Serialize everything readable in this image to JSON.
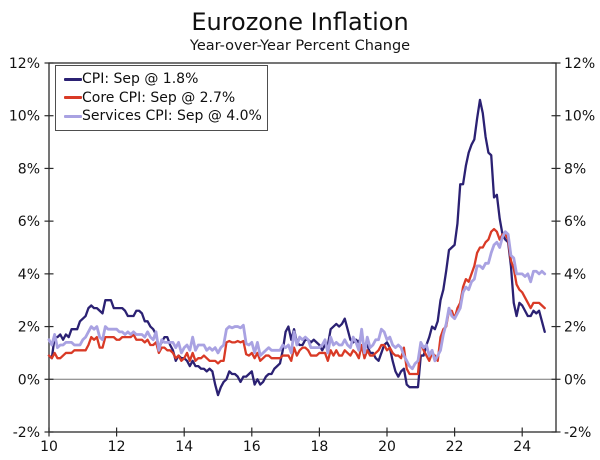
{
  "chart": {
    "title": "Eurozone Inflation",
    "subtitle": "Year-over-Year Percent Change",
    "legend": [
      {
        "label": "CPI: Sep @ 1.8%",
        "color": "#2b2173"
      },
      {
        "label": "Core CPI: Sep @ 2.7%",
        "color": "#d93a26"
      },
      {
        "label": "Services CPI: Sep @ 4.0%",
        "color": "#a9a2e2"
      }
    ]
  },
  "chart_data": {
    "type": "line",
    "title": "Eurozone Inflation",
    "subtitle": "Year-over-Year Percent Change",
    "x_unit": "year, monthly points starting Jan 2010, ending Sep 2024",
    "xlim": [
      2010,
      2025
    ],
    "ylim": [
      -2,
      12
    ],
    "grid": false,
    "zero_line": true,
    "legend_position": "top-left",
    "frame_color": "#2b2b2b",
    "zero_line_color": "#757575",
    "x_tick_years": [
      2010,
      2012,
      2014,
      2016,
      2018,
      2020,
      2022,
      2024
    ],
    "x_tick_labels": [
      "10",
      "12",
      "14",
      "16",
      "18",
      "20",
      "22",
      "24"
    ],
    "y_tick_values": [
      -2,
      0,
      2,
      4,
      6,
      8,
      10,
      12
    ],
    "y_tick_labels": [
      "-2%",
      "0%",
      "2%",
      "4%",
      "6%",
      "8%",
      "10%",
      "12%"
    ],
    "start_year": 2010,
    "series": [
      {
        "name": "CPI: Sep @ 1.8%",
        "color": "#2b2173",
        "stroke_width": 2.3,
        "last_point": {
          "month": "Sep 2024",
          "value": 1.8
        },
        "values": [
          0.9,
          0.8,
          1.6,
          1.6,
          1.7,
          1.5,
          1.7,
          1.6,
          1.9,
          1.9,
          1.9,
          2.2,
          2.3,
          2.4,
          2.7,
          2.8,
          2.7,
          2.7,
          2.6,
          2.5,
          3.0,
          3.0,
          3.0,
          2.7,
          2.7,
          2.7,
          2.7,
          2.6,
          2.4,
          2.4,
          2.4,
          2.6,
          2.6,
          2.5,
          2.2,
          2.2,
          2.0,
          1.9,
          1.7,
          1.2,
          1.4,
          1.6,
          1.6,
          1.3,
          1.1,
          0.7,
          0.9,
          0.8,
          0.8,
          0.7,
          0.5,
          0.7,
          0.5,
          0.5,
          0.4,
          0.4,
          0.3,
          0.4,
          0.3,
          -0.2,
          -0.6,
          -0.3,
          -0.1,
          0.0,
          0.3,
          0.2,
          0.2,
          0.1,
          -0.1,
          0.1,
          0.1,
          0.2,
          0.3,
          -0.2,
          0.0,
          -0.2,
          -0.1,
          0.1,
          0.2,
          0.2,
          0.4,
          0.5,
          0.6,
          1.1,
          1.8,
          2.0,
          1.5,
          1.9,
          1.4,
          1.3,
          1.3,
          1.5,
          1.5,
          1.4,
          1.5,
          1.4,
          1.3,
          1.1,
          1.3,
          1.3,
          1.9,
          2.0,
          2.1,
          2.0,
          2.1,
          2.3,
          1.9,
          1.5,
          1.4,
          1.5,
          1.4,
          1.7,
          1.2,
          1.3,
          1.0,
          1.0,
          0.8,
          0.7,
          1.0,
          1.3,
          1.4,
          1.2,
          0.7,
          0.3,
          0.1,
          0.3,
          0.4,
          -0.2,
          -0.3,
          -0.3,
          -0.3,
          -0.3,
          0.9,
          0.9,
          1.3,
          1.6,
          2.0,
          1.9,
          2.2,
          3.0,
          3.4,
          4.1,
          4.9,
          5.0,
          5.1,
          5.9,
          7.4,
          7.4,
          8.1,
          8.6,
          8.9,
          9.1,
          9.9,
          10.6,
          10.1,
          9.2,
          8.6,
          8.5,
          6.9,
          7.0,
          6.1,
          5.5,
          5.3,
          5.2,
          4.3,
          2.9,
          2.4,
          2.9,
          2.8,
          2.6,
          2.4,
          2.4,
          2.6,
          2.5,
          2.6,
          2.2,
          1.8
        ]
      },
      {
        "name": "Core CPI: Sep @ 2.7%",
        "color": "#d93a26",
        "stroke_width": 2.3,
        "last_point": {
          "month": "Sep 2024",
          "value": 2.7
        },
        "values": [
          0.9,
          0.8,
          1.0,
          0.8,
          0.8,
          0.9,
          1.0,
          1.0,
          1.0,
          1.1,
          1.1,
          1.1,
          1.1,
          1.1,
          1.3,
          1.6,
          1.5,
          1.6,
          1.2,
          1.2,
          1.6,
          1.6,
          1.6,
          1.6,
          1.5,
          1.5,
          1.6,
          1.6,
          1.6,
          1.6,
          1.7,
          1.5,
          1.5,
          1.5,
          1.4,
          1.5,
          1.3,
          1.3,
          1.4,
          1.0,
          1.2,
          1.2,
          1.1,
          1.1,
          1.0,
          0.8,
          0.9,
          0.7,
          0.8,
          1.0,
          0.7,
          1.0,
          0.7,
          0.8,
          0.8,
          0.9,
          0.8,
          0.7,
          0.7,
          0.7,
          0.6,
          0.7,
          0.7,
          1.4,
          1.45,
          1.4,
          1.4,
          1.45,
          1.4,
          1.45,
          0.95,
          0.9,
          1.0,
          0.8,
          1.0,
          0.7,
          0.8,
          0.9,
          0.9,
          0.8,
          0.8,
          0.8,
          0.8,
          0.9,
          0.9,
          0.9,
          0.7,
          1.2,
          0.9,
          1.1,
          1.2,
          1.2,
          1.1,
          0.9,
          0.9,
          0.9,
          1.0,
          1.0,
          1.0,
          0.7,
          1.1,
          0.9,
          1.1,
          0.9,
          0.9,
          1.1,
          1.0,
          0.9,
          1.1,
          1.0,
          0.8,
          1.3,
          0.8,
          1.1,
          0.9,
          0.9,
          1.0,
          1.1,
          1.3,
          1.3,
          1.1,
          1.2,
          1.0,
          0.9,
          0.9,
          0.8,
          1.2,
          0.4,
          0.2,
          0.2,
          0.2,
          0.2,
          1.4,
          1.1,
          0.9,
          0.7,
          1.0,
          0.9,
          0.7,
          1.6,
          1.9,
          2.0,
          2.6,
          2.6,
          2.3,
          2.7,
          2.9,
          3.5,
          3.8,
          3.7,
          4.0,
          4.3,
          4.8,
          5.0,
          5.0,
          5.2,
          5.3,
          5.6,
          5.7,
          5.6,
          5.3,
          5.5,
          5.5,
          5.3,
          4.5,
          4.2,
          3.6,
          3.4,
          3.3,
          3.1,
          2.9,
          2.7,
          2.9,
          2.9,
          2.9,
          2.8,
          2.7
        ]
      },
      {
        "name": "Services CPI: Sep @ 4.0%",
        "color": "#a9a2e2",
        "stroke_width": 2.8,
        "last_point": {
          "month": "Sep 2024",
          "value": 4.0
        },
        "values": [
          1.5,
          1.3,
          1.7,
          1.2,
          1.3,
          1.3,
          1.4,
          1.4,
          1.4,
          1.3,
          1.3,
          1.3,
          1.5,
          1.6,
          1.8,
          2.0,
          1.9,
          2.0,
          1.6,
          1.5,
          2.0,
          1.9,
          1.9,
          1.9,
          1.9,
          1.8,
          1.8,
          1.7,
          1.8,
          1.7,
          1.8,
          1.7,
          1.7,
          1.7,
          1.6,
          1.8,
          1.6,
          1.5,
          1.8,
          1.1,
          1.5,
          1.4,
          1.4,
          1.4,
          1.4,
          1.2,
          1.4,
          1.0,
          1.2,
          1.3,
          1.1,
          1.6,
          1.1,
          1.3,
          1.3,
          1.3,
          1.1,
          1.2,
          1.1,
          1.2,
          1.0,
          1.2,
          1.3,
          1.9,
          2.0,
          1.95,
          2.0,
          2.0,
          1.95,
          2.05,
          1.35,
          1.3,
          1.4,
          1.0,
          1.4,
          0.9,
          1.0,
          1.1,
          1.2,
          1.1,
          1.1,
          1.1,
          1.1,
          1.3,
          1.2,
          1.3,
          1.0,
          1.8,
          1.3,
          1.6,
          1.5,
          1.6,
          1.5,
          1.2,
          1.2,
          1.2,
          1.2,
          1.3,
          1.5,
          1.0,
          1.6,
          1.3,
          1.4,
          1.3,
          1.3,
          1.5,
          1.3,
          1.2,
          1.6,
          1.4,
          1.1,
          1.9,
          1.0,
          1.6,
          1.2,
          1.3,
          1.5,
          1.5,
          1.9,
          1.8,
          1.5,
          1.6,
          1.3,
          1.2,
          1.3,
          1.2,
          0.9,
          0.7,
          0.5,
          0.4,
          0.6,
          0.7,
          1.4,
          1.2,
          1.3,
          0.9,
          1.1,
          0.7,
          0.9,
          1.1,
          1.7,
          2.1,
          2.7,
          2.4,
          2.3,
          2.5,
          2.7,
          3.3,
          3.5,
          3.4,
          3.7,
          3.8,
          4.3,
          4.3,
          4.2,
          4.4,
          4.4,
          4.8,
          5.1,
          5.2,
          5.0,
          5.4,
          5.6,
          5.5,
          4.7,
          4.6,
          4.0,
          4.0,
          4.0,
          3.9,
          4.0,
          3.7,
          4.1,
          4.1,
          4.0,
          4.1,
          4.0
        ]
      }
    ]
  }
}
